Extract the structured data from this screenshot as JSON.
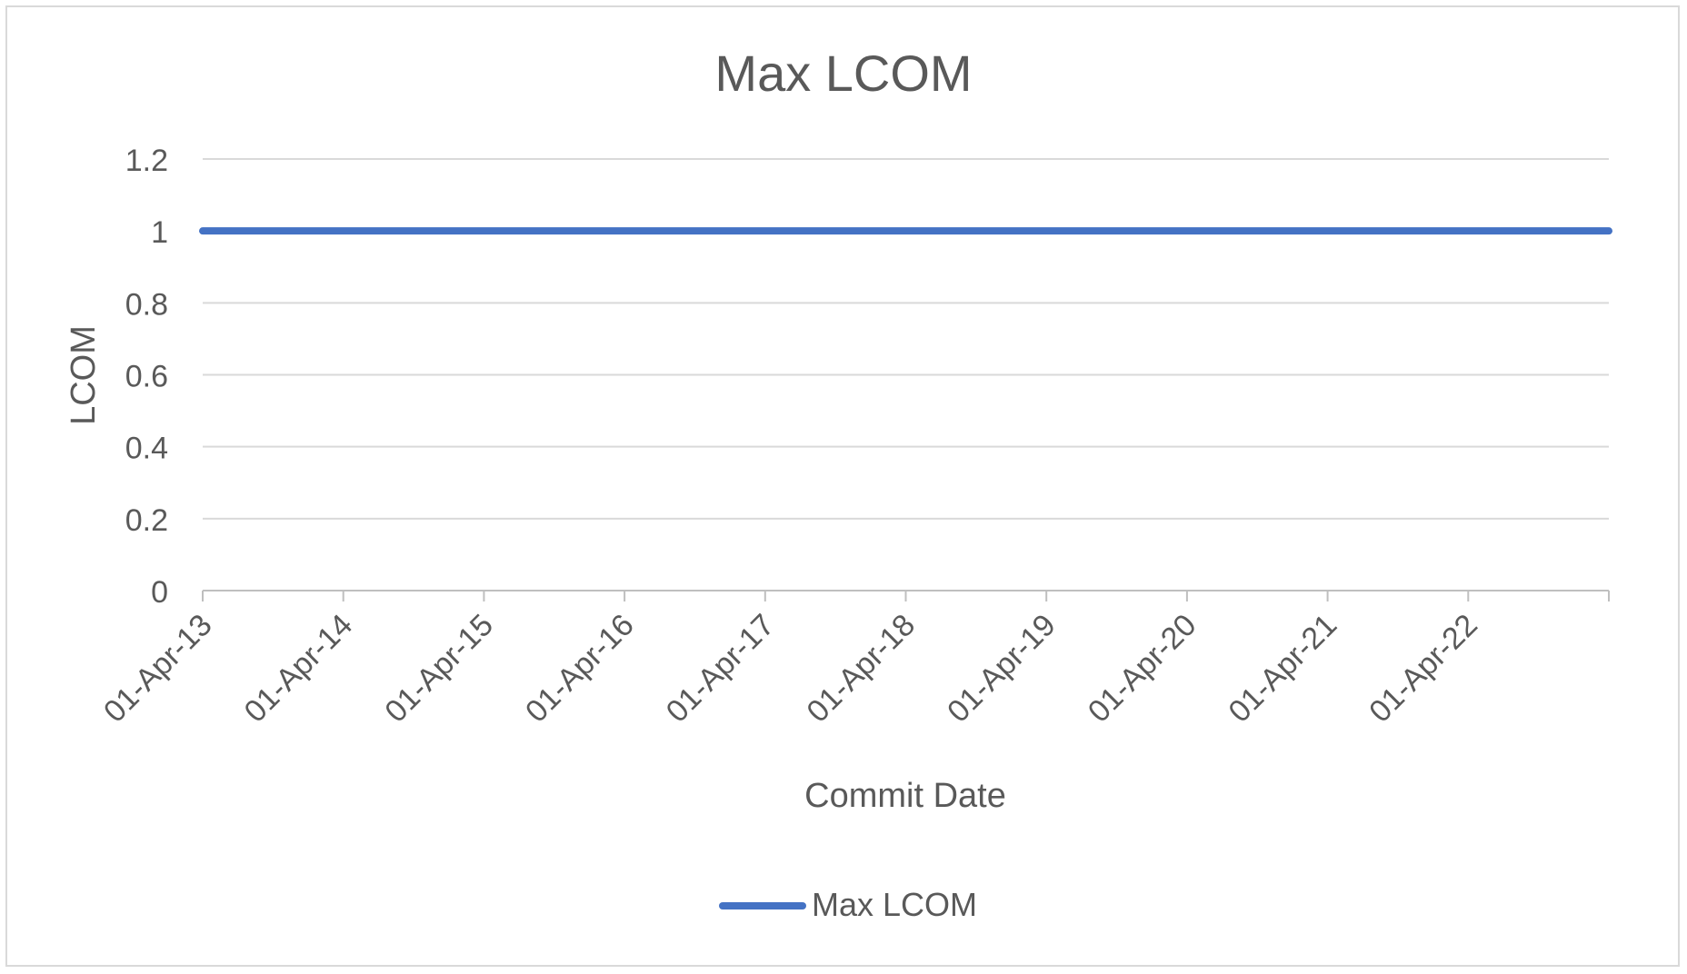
{
  "chart_data": {
    "type": "line",
    "title": "Max LCOM",
    "xlabel": "Commit Date",
    "ylabel": "LCOM",
    "x_tick_labels": [
      "01-Apr-13",
      "01-Apr-14",
      "01-Apr-15",
      "01-Apr-16",
      "01-Apr-17",
      "01-Apr-18",
      "01-Apr-19",
      "01-Apr-20",
      "01-Apr-21",
      "01-Apr-22"
    ],
    "y_tick_labels": [
      "0",
      "0.2",
      "0.4",
      "0.6",
      "0.8",
      "1",
      "1.2"
    ],
    "ylim": [
      0,
      1.2
    ],
    "xlim": [
      "2013-04-01",
      "2023-04-01"
    ],
    "grid": true,
    "legend_position": "bottom",
    "series": [
      {
        "name": "Max LCOM",
        "color": "#4472c4",
        "x": [
          "2013-04-01",
          "2023-04-01"
        ],
        "values": [
          1,
          1
        ]
      }
    ]
  }
}
